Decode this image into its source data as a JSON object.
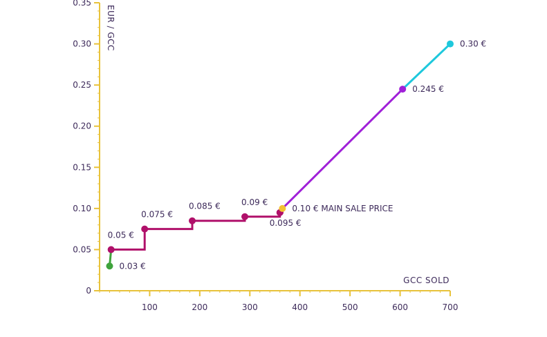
{
  "chart_data": {
    "type": "line",
    "xlabel": "GCC SOLD",
    "ylabel": "EUR / GCC",
    "xlim": [
      0,
      700
    ],
    "ylim": [
      0,
      0.35
    ],
    "x_ticks": [
      {
        "value": 100,
        "label": "100"
      },
      {
        "value": 200,
        "label": "200"
      },
      {
        "value": 300,
        "label": "300"
      },
      {
        "value": 400,
        "label": "400"
      },
      {
        "value": 500,
        "label": "500"
      },
      {
        "value": 600,
        "label": "600"
      },
      {
        "value": 700,
        "label": "700"
      }
    ],
    "y_ticks": [
      {
        "value": 0,
        "label": "0"
      },
      {
        "value": 0.05,
        "label": "0.05"
      },
      {
        "value": 0.1,
        "label": "0.10"
      },
      {
        "value": 0.15,
        "label": "0.15"
      },
      {
        "value": 0.2,
        "label": "0.20"
      },
      {
        "value": 0.25,
        "label": "0.25"
      },
      {
        "value": 0.3,
        "label": "0.30"
      },
      {
        "value": 0.35,
        "label": "0.35"
      }
    ],
    "colors": {
      "axis": "#e8c23a",
      "tick_label": "#3d2a5a",
      "green": "#3fa33c",
      "magenta": "#b0106a",
      "purple": "#a020d8",
      "cyan": "#1ec8dc",
      "gold": "#f3c233"
    },
    "series": [
      {
        "color": "green",
        "points": [
          [
            20,
            0.03
          ],
          [
            23,
            0.05
          ]
        ]
      },
      {
        "color": "magenta",
        "points": [
          [
            23,
            0.05
          ],
          [
            90,
            0.05
          ],
          [
            90,
            0.075
          ],
          [
            185,
            0.075
          ],
          [
            185,
            0.085
          ],
          [
            290,
            0.085
          ],
          [
            290,
            0.09
          ],
          [
            360,
            0.09
          ],
          [
            360,
            0.095
          ],
          [
            365,
            0.095
          ],
          [
            365,
            0.1
          ]
        ]
      },
      {
        "color": "purple",
        "points": [
          [
            365,
            0.1
          ],
          [
            605,
            0.245
          ]
        ]
      },
      {
        "color": "cyan",
        "points": [
          [
            605,
            0.245
          ],
          [
            700,
            0.3
          ]
        ]
      }
    ],
    "points": [
      {
        "x": 20,
        "y": 0.03,
        "label": "0.03 €",
        "color": "green",
        "label_pos": "right"
      },
      {
        "x": 23,
        "y": 0.05,
        "label": "0.05 €",
        "color": "magenta",
        "label_pos": "above"
      },
      {
        "x": 90,
        "y": 0.075,
        "label": "0.075 €",
        "color": "magenta",
        "label_pos": "above"
      },
      {
        "x": 185,
        "y": 0.085,
        "label": "0.085 €",
        "color": "magenta",
        "label_pos": "above"
      },
      {
        "x": 290,
        "y": 0.09,
        "label": "0.09 €",
        "color": "magenta",
        "label_pos": "above"
      },
      {
        "x": 360,
        "y": 0.095,
        "label": "0.095 €",
        "color": "magenta",
        "label_pos": "below"
      },
      {
        "x": 365,
        "y": 0.1,
        "label": "0.10 € MAIN SALE PRICE",
        "color": "gold",
        "label_pos": "right"
      },
      {
        "x": 605,
        "y": 0.245,
        "label": "0.245 €",
        "color": "purple",
        "label_pos": "right"
      },
      {
        "x": 700,
        "y": 0.3,
        "label": "0.30 €",
        "color": "cyan",
        "label_pos": "right"
      }
    ]
  }
}
